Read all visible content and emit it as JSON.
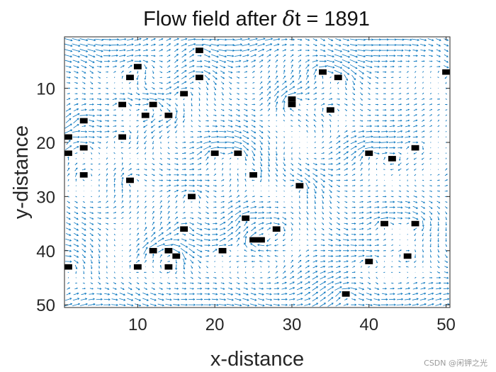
{
  "chart_data": {
    "type": "quiver",
    "title_prefix": "Flow field after ",
    "title_symbol": "δ",
    "title_suffix": "t = 1891",
    "xlabel": "x-distance",
    "ylabel": "y-distance",
    "xlim": [
      0.5,
      50.5
    ],
    "ylim": [
      0.5,
      50.5
    ],
    "y_reversed": true,
    "xticks": [
      10,
      20,
      30,
      40,
      50
    ],
    "yticks": [
      10,
      20,
      30,
      40,
      50
    ],
    "grid": false,
    "arrow_color": "#0072BD",
    "obstacle_color": "#000000",
    "obstacles": [
      [
        18,
        3
      ],
      [
        10,
        6
      ],
      [
        50,
        7
      ],
      [
        34,
        7
      ],
      [
        9,
        8
      ],
      [
        18,
        8
      ],
      [
        36,
        8
      ],
      [
        16,
        11
      ],
      [
        30,
        12
      ],
      [
        30,
        13
      ],
      [
        8,
        13
      ],
      [
        12,
        13
      ],
      [
        35,
        14
      ],
      [
        11,
        15
      ],
      [
        14,
        15
      ],
      [
        3,
        16
      ],
      [
        1,
        19
      ],
      [
        8,
        19
      ],
      [
        3,
        21
      ],
      [
        46,
        21
      ],
      [
        1,
        22
      ],
      [
        20,
        22
      ],
      [
        23,
        22
      ],
      [
        40,
        22
      ],
      [
        43,
        23
      ],
      [
        3,
        26
      ],
      [
        25,
        26
      ],
      [
        9,
        27
      ],
      [
        31,
        28
      ],
      [
        17,
        30
      ],
      [
        24,
        34
      ],
      [
        42,
        35
      ],
      [
        46,
        35
      ],
      [
        16,
        36
      ],
      [
        28,
        36
      ],
      [
        25,
        38
      ],
      [
        26,
        38
      ],
      [
        12,
        40
      ],
      [
        14,
        40
      ],
      [
        21,
        40
      ],
      [
        15,
        41
      ],
      [
        45,
        41
      ],
      [
        40,
        42
      ],
      [
        1,
        43
      ],
      [
        10,
        43
      ],
      [
        14,
        43
      ],
      [
        37,
        48
      ]
    ]
  },
  "watermark": "CSDN @闲钾之光"
}
